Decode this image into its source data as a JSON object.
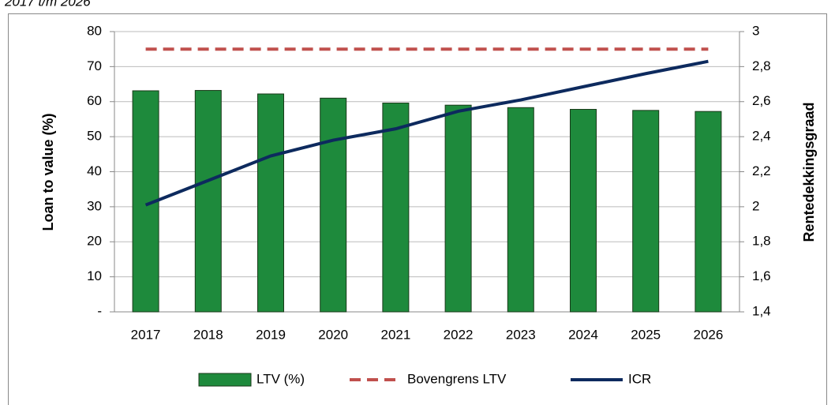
{
  "chart_data": {
    "type": "bar",
    "subtitle": "2017 t/m 2026",
    "categories": [
      "2017",
      "2018",
      "2019",
      "2020",
      "2021",
      "2022",
      "2023",
      "2024",
      "2025",
      "2026"
    ],
    "series": [
      {
        "name": "LTV (%)",
        "type": "bar",
        "color": "#1e8a3c",
        "values": [
          63.1,
          63.2,
          62.2,
          61.0,
          59.6,
          59.0,
          58.3,
          57.8,
          57.5,
          57.2
        ]
      },
      {
        "name": "Bovengrens LTV",
        "type": "dashed-line",
        "color": "#c0504d",
        "values": [
          75,
          75,
          75,
          75,
          75,
          75,
          75,
          75,
          75,
          75
        ]
      },
      {
        "name": "ICR",
        "type": "line",
        "axis": "y2",
        "color": "#0d2a5e",
        "values": [
          2.01,
          2.15,
          2.29,
          2.38,
          2.445,
          2.545,
          2.61,
          2.685,
          2.76,
          2.83
        ]
      }
    ],
    "ylabel": "Loan to value (%)",
    "y2label": "Rentedekkingsgraad",
    "ylim": [
      0,
      80
    ],
    "yticks": [
      {
        "value": 0,
        "label": "-"
      },
      10,
      20,
      30,
      40,
      50,
      60,
      70,
      80
    ],
    "y2lim": [
      1.4,
      3
    ],
    "y2ticks": [
      {
        "value": 1.4,
        "label": "1,4"
      },
      {
        "value": 1.6,
        "label": "1,6"
      },
      {
        "value": 1.8,
        "label": "1,8"
      },
      2,
      {
        "value": 2.2,
        "label": "2,2"
      },
      {
        "value": 2.4,
        "label": "2,4"
      },
      {
        "value": 2.6,
        "label": "2,6"
      },
      {
        "value": 2.8,
        "label": "2,8"
      },
      3
    ],
    "grid": true,
    "legend": "bottom"
  }
}
